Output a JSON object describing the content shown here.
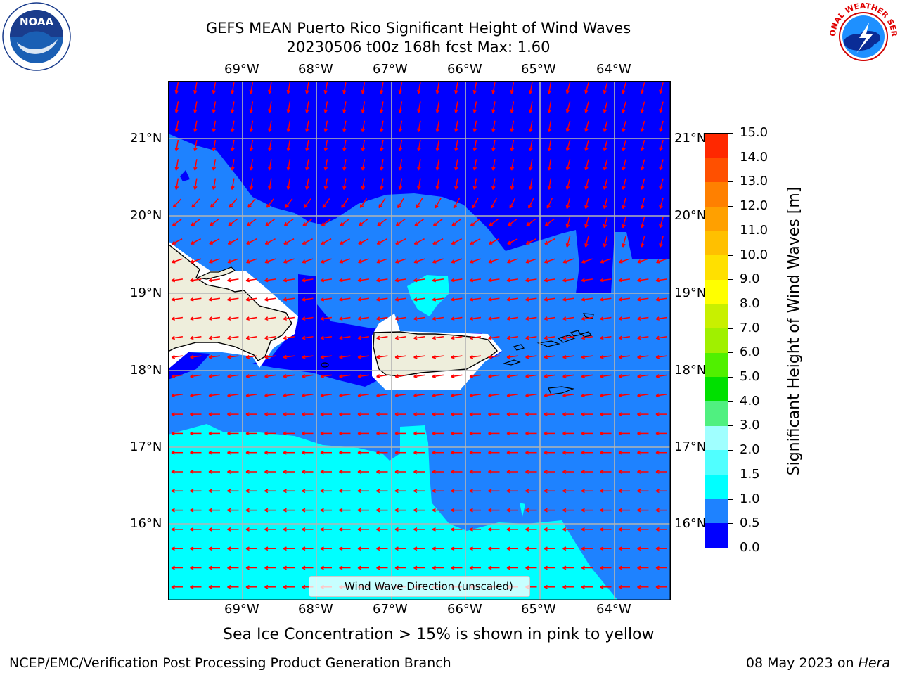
{
  "header": {
    "title_line1": "GEFS MEAN Puerto Rico Significant Height of Wind Waves",
    "title_line2": "20230506 t00z 168h fcst   Max: 1.60"
  },
  "logos": {
    "left_name": "NOAA",
    "left_ring_text": "NATIONAL OCEANIC AND ATMOSPHERIC ADMINISTRATION · U.S. DEPARTMENT OF COMMERCE",
    "right_ring_text": "NATIONAL WEATHER SERVICE"
  },
  "map": {
    "lon_labels": [
      "69°W",
      "68°W",
      "67°W",
      "66°W",
      "65°W",
      "64°W"
    ],
    "lat_labels": [
      "21°N",
      "20°N",
      "19°N",
      "18°N",
      "17°N",
      "16°N"
    ],
    "legend_label": "Wind Wave Direction (unscaled)",
    "colors": {
      "level_0_0_5": "#0000ff",
      "level_0_5_1_0": "#1e82ff",
      "level_1_0_1_5": "#00ffff",
      "land": "#eeeedc",
      "coastline": "#000000",
      "grid": "#b4b4b4",
      "arrows": "#ff0000"
    }
  },
  "colorbar": {
    "label": "Significant Height of Wind Waves [m]",
    "ticks": [
      "15.0",
      "14.0",
      "13.0",
      "12.0",
      "11.0",
      "10.0",
      "9.0",
      "8.0",
      "7.0",
      "6.0",
      "5.0",
      "4.0",
      "3.0",
      "2.0",
      "1.5",
      "1.0",
      "0.5",
      "0.0"
    ],
    "colors": [
      "#0000ff",
      "#1e82ff",
      "#00ffff",
      "#50ffff",
      "#a0ffff",
      "#50f080",
      "#00e000",
      "#50f000",
      "#a0f000",
      "#c8f000",
      "#ffff00",
      "#ffe000",
      "#ffc000",
      "#ffa000",
      "#ff8000",
      "#ff5000",
      "#ff2800"
    ]
  },
  "note": "Sea Ice Concentration > 15% is shown in pink to yellow",
  "footer": {
    "left": "NCEP/EMC/Verification Post Processing Product Generation Branch",
    "date": "08 May 2023 on ",
    "machine": "Hera"
  }
}
